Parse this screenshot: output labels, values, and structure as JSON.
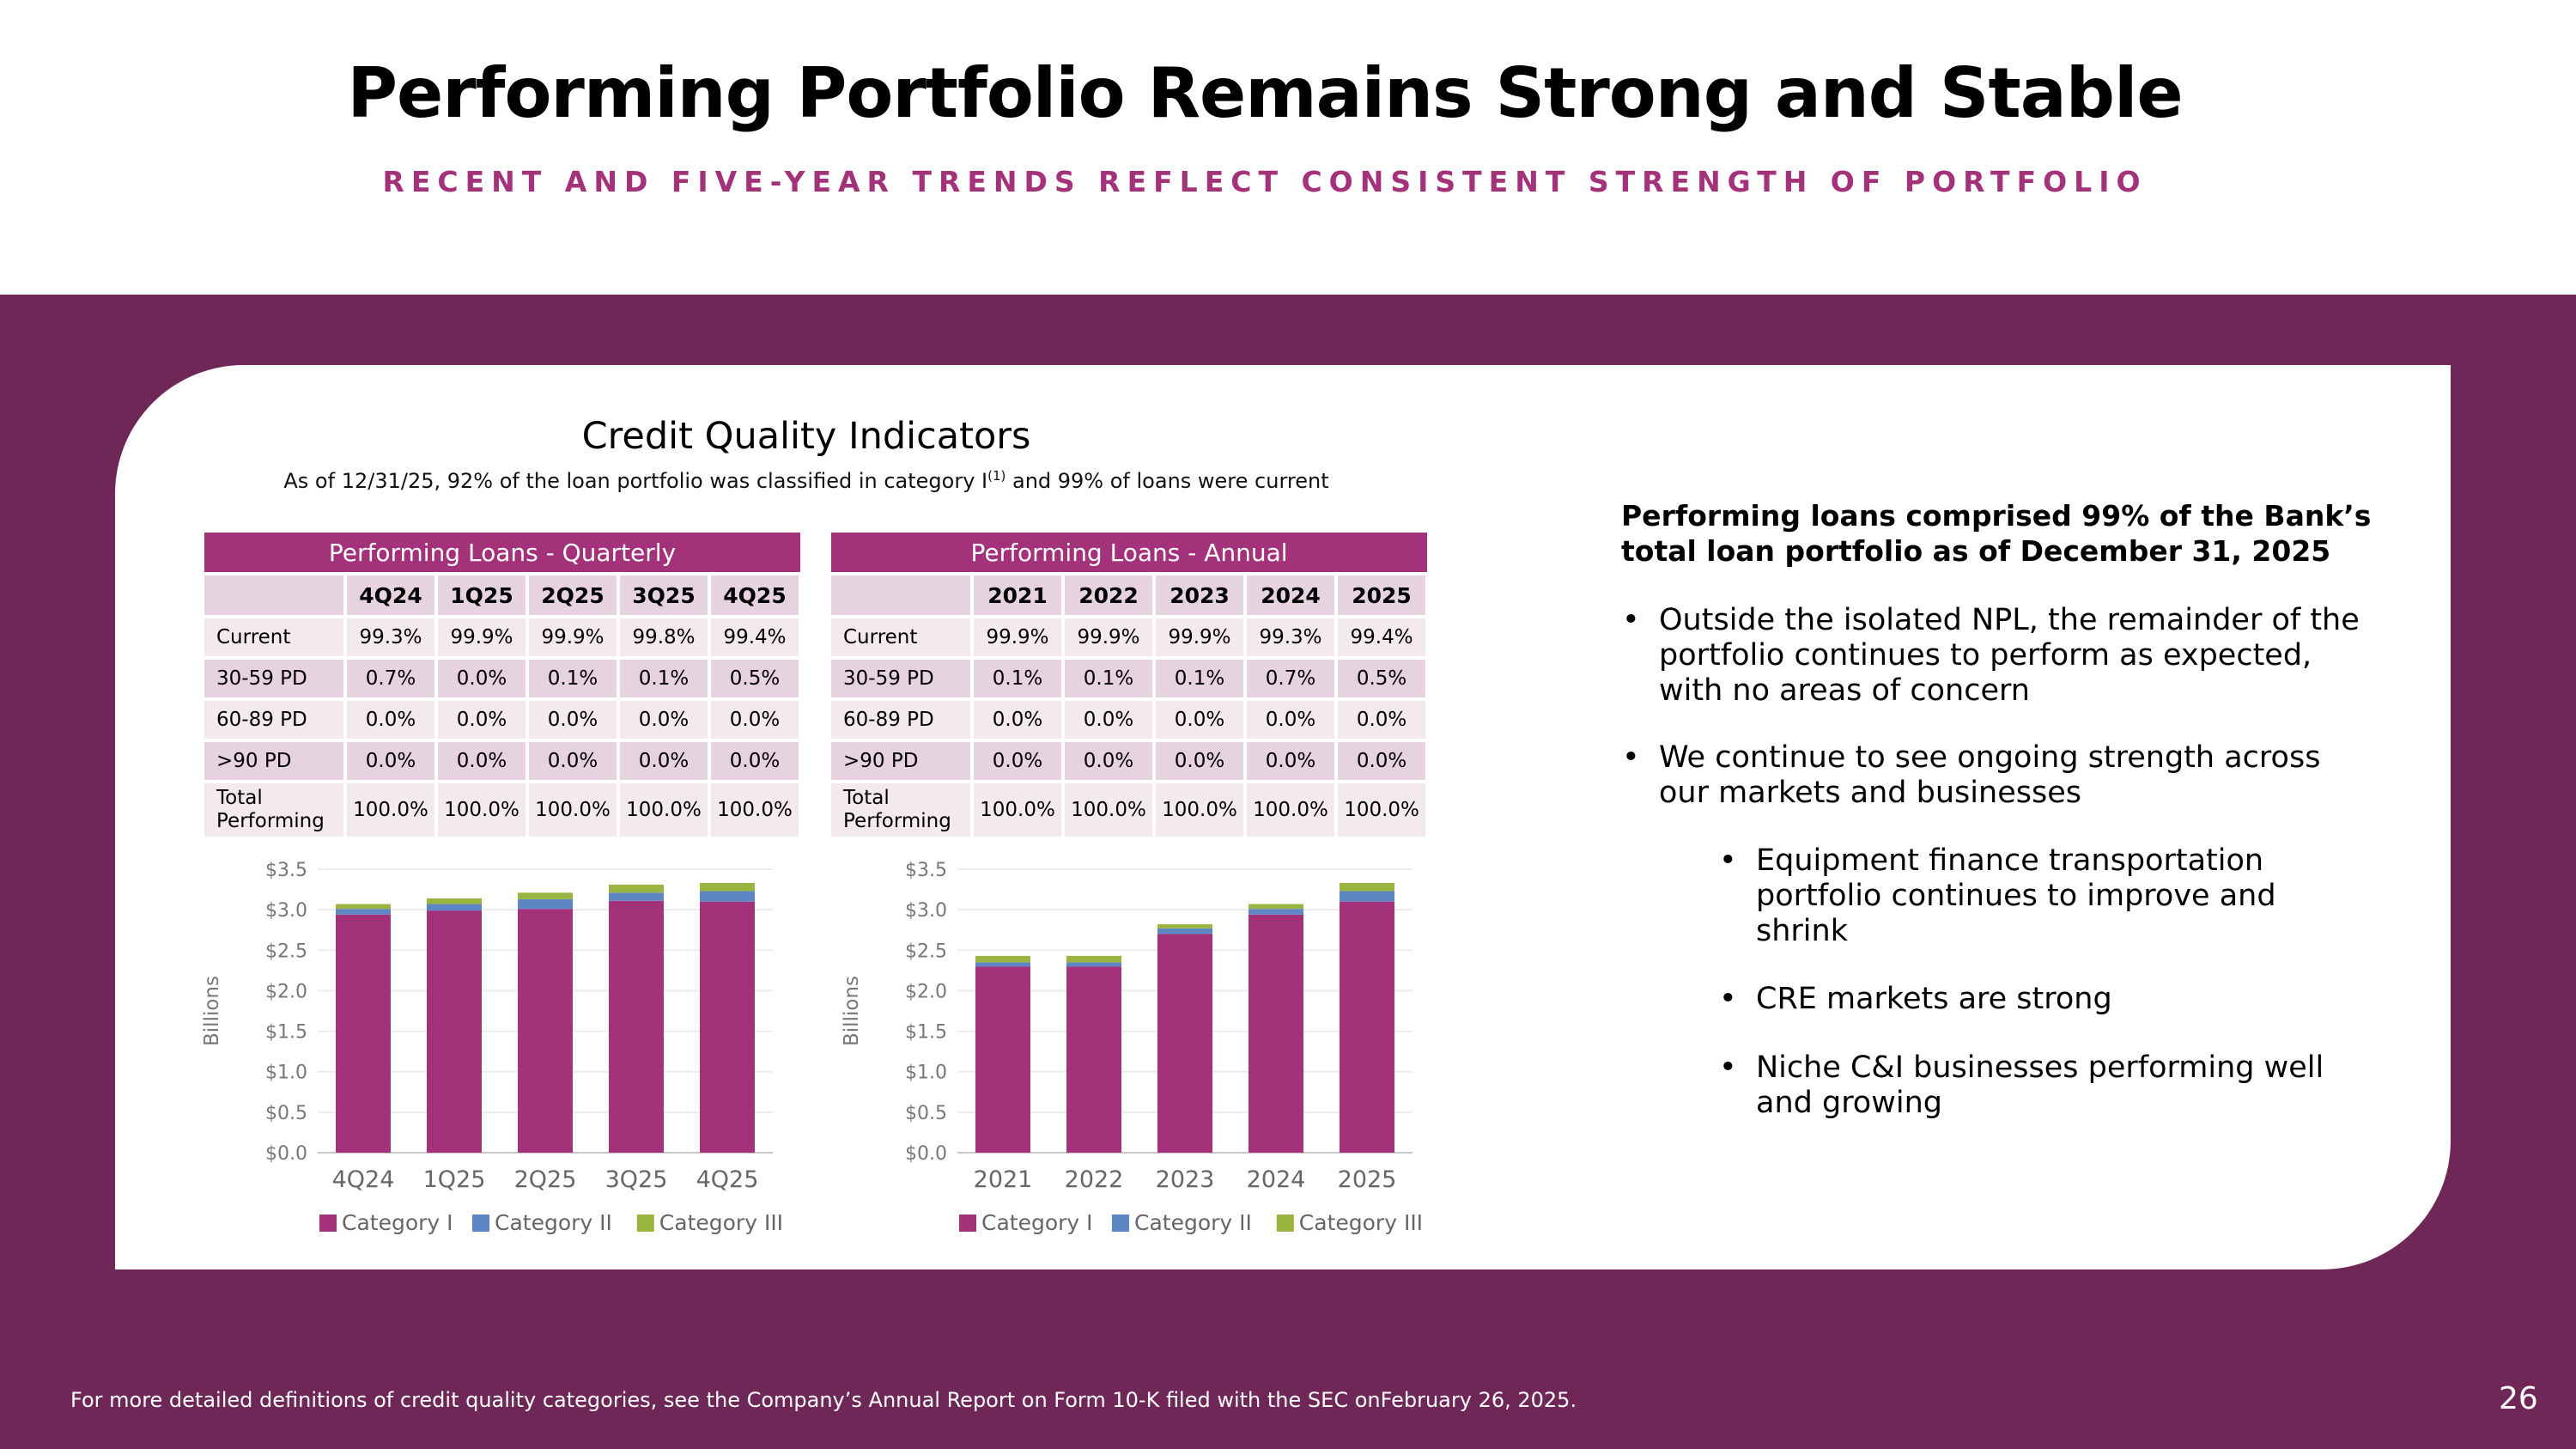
{
  "title": "Performing Portfolio Remains Strong and Stable",
  "subtitle": "RECENT AND FIVE-YEAR TRENDS REFLECT CONSISTENT STRENGTH OF PORTFOLIO",
  "credit_quality": {
    "heading": "Credit Quality Indicators",
    "subheading_pre": "As of 12/31/25, 92% of the loan portfolio was classified in category I",
    "subheading_sup": "(1)",
    "subheading_post": " and 99% of loans were current"
  },
  "tables": {
    "quarterly": {
      "title": "Performing Loans - Quarterly",
      "columns": [
        "4Q24",
        "1Q25",
        "2Q25",
        "3Q25",
        "4Q25"
      ],
      "rows": [
        {
          "label": "Current",
          "values": [
            "99.3%",
            "99.9%",
            "99.9%",
            "99.8%",
            "99.4%"
          ]
        },
        {
          "label": "30-59 PD",
          "values": [
            "0.7%",
            "0.0%",
            "0.1%",
            "0.1%",
            "0.5%"
          ]
        },
        {
          "label": "60-89 PD",
          "values": [
            "0.0%",
            "0.0%",
            "0.0%",
            "0.0%",
            "0.0%"
          ]
        },
        {
          "label": ">90 PD",
          "values": [
            "0.0%",
            "0.0%",
            "0.0%",
            "0.0%",
            "0.0%"
          ]
        }
      ],
      "total_label_1": "Total",
      "total_label_2": "Performing",
      "total_values": [
        "100.0%",
        "100.0%",
        "100.0%",
        "100.0%",
        "100.0%"
      ]
    },
    "annual": {
      "title": "Performing Loans - Annual",
      "columns": [
        "2021",
        "2022",
        "2023",
        "2024",
        "2025"
      ],
      "rows": [
        {
          "label": "Current",
          "values": [
            "99.9%",
            "99.9%",
            "99.9%",
            "99.3%",
            "99.4%"
          ]
        },
        {
          "label": "30-59 PD",
          "values": [
            "0.1%",
            "0.1%",
            "0.1%",
            "0.7%",
            "0.5%"
          ]
        },
        {
          "label": "60-89 PD",
          "values": [
            "0.0%",
            "0.0%",
            "0.0%",
            "0.0%",
            "0.0%"
          ]
        },
        {
          "label": ">90 PD",
          "values": [
            "0.0%",
            "0.0%",
            "0.0%",
            "0.0%",
            "0.0%"
          ]
        }
      ],
      "total_label_1": "Total",
      "total_label_2": "Performing",
      "total_values": [
        "100.0%",
        "100.0%",
        "100.0%",
        "100.0%",
        "100.0%"
      ]
    }
  },
  "colors": {
    "category_i": "#a3327a",
    "category_ii": "#5f86c4",
    "category_iii": "#9ab53f",
    "band": "#6e2757"
  },
  "chart_data": [
    {
      "type": "bar",
      "stacked": true,
      "ylabel": "Billions",
      "ylim": [
        0,
        3.5
      ],
      "yticks": [
        "$0.0",
        "$0.5",
        "$1.0",
        "$1.5",
        "$2.0",
        "$2.5",
        "$3.0",
        "$3.5"
      ],
      "categories": [
        "4Q24",
        "1Q25",
        "2Q25",
        "3Q25",
        "4Q25"
      ],
      "series": [
        {
          "name": "Category I",
          "values": [
            2.94,
            2.99,
            3.01,
            3.11,
            3.1
          ]
        },
        {
          "name": "Category II",
          "values": [
            0.07,
            0.08,
            0.12,
            0.1,
            0.13
          ]
        },
        {
          "name": "Category III",
          "values": [
            0.06,
            0.07,
            0.08,
            0.1,
            0.1
          ]
        }
      ]
    },
    {
      "type": "bar",
      "stacked": true,
      "ylabel": "Billions",
      "ylim": [
        0,
        3.5
      ],
      "yticks": [
        "$0.0",
        "$0.5",
        "$1.0",
        "$1.5",
        "$2.0",
        "$2.5",
        "$3.0",
        "$3.5"
      ],
      "categories": [
        "2021",
        "2022",
        "2023",
        "2024",
        "2025"
      ],
      "series": [
        {
          "name": "Category I",
          "values": [
            2.3,
            2.3,
            2.7,
            2.94,
            3.1
          ]
        },
        {
          "name": "Category II",
          "values": [
            0.05,
            0.05,
            0.07,
            0.07,
            0.13
          ]
        },
        {
          "name": "Category III",
          "values": [
            0.08,
            0.08,
            0.05,
            0.06,
            0.1
          ]
        }
      ]
    }
  ],
  "right_panel": {
    "heading_1": "Performing loans comprised 99% of the Bank’s",
    "heading_2": "total loan portfolio as of December 31, 2025",
    "bullets": [
      {
        "l1": "Outside the isolated NPL, the remainder of the",
        "l2": "portfolio continues to perform as expected,",
        "l3": "with no areas of concern"
      },
      {
        "l1": "We continue to see ongoing strength across",
        "l2": "our markets and businesses"
      }
    ],
    "sub_bullets": [
      {
        "l1": "Equipment finance transportation",
        "l2": "portfolio continues to improve and",
        "l3": "shrink"
      },
      {
        "l1": "CRE markets are strong"
      },
      {
        "l1": "Niche C&I businesses performing well",
        "l2": "and growing"
      }
    ],
    "bullet_char": "•"
  },
  "footnote": "For more detailed definitions of credit quality categories, see the Company’s Annual Report on Form 10-K filed with the SEC onFebruary 26, 2025.",
  "page_number": "26"
}
